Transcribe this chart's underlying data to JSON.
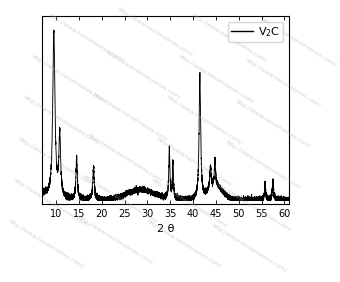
{
  "title": "",
  "xlabel": "2 θ",
  "ylabel": "",
  "xlim": [
    7,
    61
  ],
  "legend_label": "V₂C",
  "line_color": "black",
  "background_color": "white",
  "xticks": [
    10,
    15,
    20,
    25,
    30,
    35,
    40,
    45,
    50,
    55,
    60
  ],
  "noise_level": 0.008,
  "watermark_color": "#b0b0b0",
  "watermark_alpha": 0.55
}
